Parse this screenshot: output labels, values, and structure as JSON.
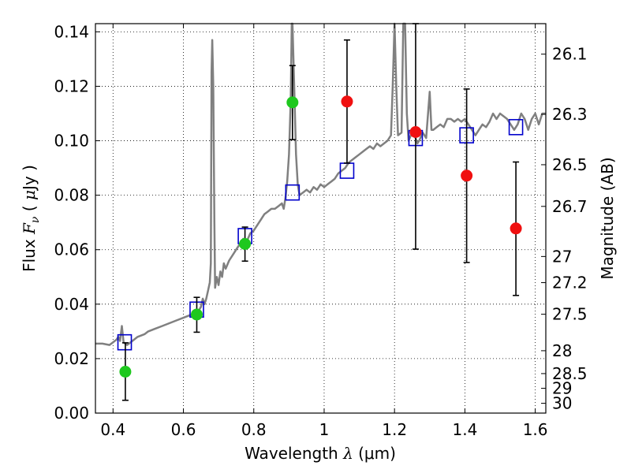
{
  "chart_data": {
    "type": "scatter",
    "xlabel": {
      "prefix": "Wavelength",
      "symbol": "λ",
      "unit": "(μm)"
    },
    "ylabel": {
      "prefix": "Flux",
      "symbol": "F",
      "subscript": "ν",
      "unit_open": "(",
      "unit_mu": "μ",
      "unit_rest": "Jy )"
    },
    "ylabel_right": "Magnitude (AB)",
    "xlim": [
      0.35,
      1.63
    ],
    "ylim": [
      0.0,
      0.143
    ],
    "x_ticks": [
      0.4,
      0.6,
      0.8,
      1.0,
      1.2,
      1.4,
      1.6
    ],
    "x_tick_labels": [
      "0.4",
      "0.6",
      "0.8",
      "1",
      "1.2",
      "1.4",
      "1.6"
    ],
    "y_ticks": [
      0.0,
      0.02,
      0.04,
      0.06,
      0.08,
      0.1,
      0.12,
      0.14
    ],
    "y_tick_labels": [
      "0.00",
      "0.02",
      "0.04",
      "0.06",
      "0.08",
      "0.10",
      "0.12",
      "0.14"
    ],
    "right_ticks": [
      {
        "label": "26.1",
        "flux": 0.1318
      },
      {
        "label": "26.3",
        "flux": 0.1097
      },
      {
        "label": "26.5",
        "flux": 0.0912
      },
      {
        "label": "26.7",
        "flux": 0.0759
      },
      {
        "label": "27",
        "flux": 0.0575
      },
      {
        "label": "27.2",
        "flux": 0.0479
      },
      {
        "label": "27.5",
        "flux": 0.0363
      },
      {
        "label": "28",
        "flux": 0.0229
      },
      {
        "label": "28.5",
        "flux": 0.0145
      },
      {
        "label": "29",
        "flux": 0.0091
      },
      {
        "label": "30",
        "flux": 0.0036
      }
    ],
    "grid": true,
    "series": [
      {
        "kind": "line",
        "color": "#808080",
        "points": [
          [
            0.35,
            0.0255
          ],
          [
            0.37,
            0.0255
          ],
          [
            0.39,
            0.025
          ],
          [
            0.4,
            0.026
          ],
          [
            0.41,
            0.027
          ],
          [
            0.415,
            0.028
          ],
          [
            0.42,
            0.0265
          ],
          [
            0.425,
            0.032
          ],
          [
            0.43,
            0.026
          ],
          [
            0.44,
            0.025
          ],
          [
            0.45,
            0.026
          ],
          [
            0.47,
            0.028
          ],
          [
            0.49,
            0.029
          ],
          [
            0.5,
            0.03
          ],
          [
            0.52,
            0.031
          ],
          [
            0.54,
            0.032
          ],
          [
            0.56,
            0.033
          ],
          [
            0.58,
            0.034
          ],
          [
            0.6,
            0.035
          ],
          [
            0.62,
            0.036
          ],
          [
            0.63,
            0.036
          ],
          [
            0.64,
            0.037
          ],
          [
            0.65,
            0.039
          ],
          [
            0.655,
            0.042
          ],
          [
            0.66,
            0.04
          ],
          [
            0.665,
            0.042
          ],
          [
            0.67,
            0.045
          ],
          [
            0.675,
            0.048
          ],
          [
            0.678,
            0.055
          ],
          [
            0.68,
            0.125
          ],
          [
            0.682,
            0.137
          ],
          [
            0.685,
            0.12
          ],
          [
            0.688,
            0.07
          ],
          [
            0.69,
            0.046
          ],
          [
            0.695,
            0.05
          ],
          [
            0.7,
            0.047
          ],
          [
            0.705,
            0.052
          ],
          [
            0.71,
            0.05
          ],
          [
            0.715,
            0.055
          ],
          [
            0.72,
            0.053
          ],
          [
            0.73,
            0.056
          ],
          [
            0.74,
            0.058
          ],
          [
            0.75,
            0.06
          ],
          [
            0.76,
            0.062
          ],
          [
            0.77,
            0.064
          ],
          [
            0.78,
            0.063
          ],
          [
            0.79,
            0.066
          ],
          [
            0.8,
            0.067
          ],
          [
            0.81,
            0.069
          ],
          [
            0.82,
            0.071
          ],
          [
            0.83,
            0.073
          ],
          [
            0.84,
            0.074
          ],
          [
            0.85,
            0.075
          ],
          [
            0.86,
            0.075
          ],
          [
            0.87,
            0.076
          ],
          [
            0.88,
            0.077
          ],
          [
            0.885,
            0.075
          ],
          [
            0.89,
            0.079
          ],
          [
            0.895,
            0.085
          ],
          [
            0.9,
            0.095
          ],
          [
            0.905,
            0.115
          ],
          [
            0.908,
            0.143
          ],
          [
            0.91,
            0.143
          ],
          [
            0.915,
            0.12
          ],
          [
            0.92,
            0.095
          ],
          [
            0.925,
            0.084
          ],
          [
            0.93,
            0.08
          ],
          [
            0.94,
            0.081
          ],
          [
            0.95,
            0.082
          ],
          [
            0.96,
            0.081
          ],
          [
            0.97,
            0.083
          ],
          [
            0.98,
            0.082
          ],
          [
            0.99,
            0.084
          ],
          [
            1.0,
            0.083
          ],
          [
            1.01,
            0.084
          ],
          [
            1.02,
            0.085
          ],
          [
            1.03,
            0.086
          ],
          [
            1.04,
            0.088
          ],
          [
            1.05,
            0.089
          ],
          [
            1.06,
            0.09
          ],
          [
            1.07,
            0.092
          ],
          [
            1.08,
            0.093
          ],
          [
            1.09,
            0.094
          ],
          [
            1.1,
            0.095
          ],
          [
            1.11,
            0.096
          ],
          [
            1.12,
            0.097
          ],
          [
            1.13,
            0.098
          ],
          [
            1.14,
            0.097
          ],
          [
            1.15,
            0.099
          ],
          [
            1.16,
            0.098
          ],
          [
            1.17,
            0.099
          ],
          [
            1.18,
            0.1
          ],
          [
            1.19,
            0.102
          ],
          [
            1.195,
            0.12
          ],
          [
            1.2,
            0.143
          ],
          [
            1.205,
            0.12
          ],
          [
            1.21,
            0.102
          ],
          [
            1.22,
            0.103
          ],
          [
            1.225,
            0.143
          ],
          [
            1.23,
            0.143
          ],
          [
            1.235,
            0.11
          ],
          [
            1.24,
            0.1
          ],
          [
            1.25,
            0.103
          ],
          [
            1.26,
            0.101
          ],
          [
            1.265,
            0.099
          ],
          [
            1.27,
            0.1
          ],
          [
            1.28,
            0.103
          ],
          [
            1.29,
            0.101
          ],
          [
            1.3,
            0.118
          ],
          [
            1.305,
            0.104
          ],
          [
            1.31,
            0.104
          ],
          [
            1.32,
            0.105
          ],
          [
            1.33,
            0.106
          ],
          [
            1.34,
            0.105
          ],
          [
            1.35,
            0.108
          ],
          [
            1.36,
            0.108
          ],
          [
            1.37,
            0.107
          ],
          [
            1.38,
            0.108
          ],
          [
            1.39,
            0.107
          ],
          [
            1.4,
            0.108
          ],
          [
            1.41,
            0.106
          ],
          [
            1.42,
            0.104
          ],
          [
            1.43,
            0.102
          ],
          [
            1.44,
            0.104
          ],
          [
            1.45,
            0.106
          ],
          [
            1.46,
            0.105
          ],
          [
            1.47,
            0.107
          ],
          [
            1.48,
            0.11
          ],
          [
            1.49,
            0.108
          ],
          [
            1.5,
            0.11
          ],
          [
            1.51,
            0.109
          ],
          [
            1.52,
            0.108
          ],
          [
            1.53,
            0.106
          ],
          [
            1.54,
            0.104
          ],
          [
            1.55,
            0.106
          ],
          [
            1.56,
            0.11
          ],
          [
            1.57,
            0.108
          ],
          [
            1.58,
            0.104
          ],
          [
            1.59,
            0.108
          ],
          [
            1.6,
            0.11
          ],
          [
            1.61,
            0.106
          ],
          [
            1.62,
            0.11
          ],
          [
            1.63,
            0.11
          ]
        ]
      },
      {
        "kind": "square",
        "color": "#0000cc",
        "points": [
          [
            0.433,
            0.026
          ],
          [
            0.638,
            0.038
          ],
          [
            0.775,
            0.065
          ],
          [
            0.91,
            0.081
          ],
          [
            1.065,
            0.089
          ],
          [
            1.26,
            0.101
          ],
          [
            1.405,
            0.102
          ],
          [
            1.545,
            0.105
          ]
        ]
      },
      {
        "kind": "circle",
        "color": "#1ec81e",
        "points": [
          {
            "x": 0.435,
            "y": 0.0152,
            "yerr_low": 0.0047,
            "yerr_high": 0.0258
          },
          {
            "x": 0.638,
            "y": 0.0362,
            "yerr_low": 0.0297,
            "yerr_high": 0.0425
          },
          {
            "x": 0.775,
            "y": 0.0621,
            "yerr_low": 0.0558,
            "yerr_high": 0.0683
          },
          {
            "x": 0.91,
            "y": 0.1141,
            "yerr_low": 0.1004,
            "yerr_high": 0.1276
          }
        ]
      },
      {
        "kind": "circle",
        "color": "#f01010",
        "points": [
          {
            "x": 1.065,
            "y": 0.1144,
            "yerr_low": 0.0918,
            "yerr_high": 0.137
          },
          {
            "x": 1.26,
            "y": 0.1032,
            "yerr_low": 0.0602,
            "yerr_high": 0.143
          },
          {
            "x": 1.405,
            "y": 0.0872,
            "yerr_low": 0.0553,
            "yerr_high": 0.119
          },
          {
            "x": 1.545,
            "y": 0.0678,
            "yerr_low": 0.0432,
            "yerr_high": 0.0922
          }
        ]
      }
    ]
  }
}
